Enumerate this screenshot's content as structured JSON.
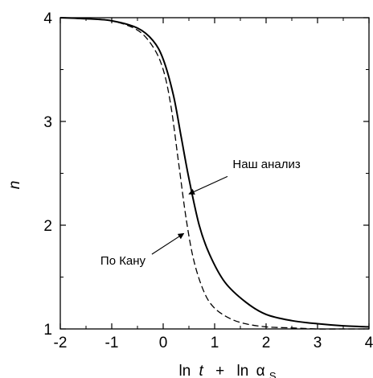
{
  "chart_data": {
    "type": "line",
    "xlabel_parts": {
      "ln1": "ln",
      "t": "t",
      "plus": "+",
      "ln2": "ln",
      "alpha": "α",
      "sub": "S"
    },
    "ylabel": "n",
    "xlim": [
      -2,
      4
    ],
    "ylim": [
      1,
      4
    ],
    "x_ticks": [
      {
        "value": -2,
        "label": "-2"
      },
      {
        "value": -1,
        "label": "-1"
      },
      {
        "value": 0,
        "label": "0"
      },
      {
        "value": 1,
        "label": "1"
      },
      {
        "value": 2,
        "label": "2"
      },
      {
        "value": 3,
        "label": "3"
      },
      {
        "value": 4,
        "label": "4"
      }
    ],
    "y_ticks": [
      {
        "value": 1,
        "label": "1"
      },
      {
        "value": 2,
        "label": "2"
      },
      {
        "value": 3,
        "label": "3"
      },
      {
        "value": 4,
        "label": "4"
      }
    ],
    "grid": false,
    "series": [
      {
        "style": "solid",
        "x": [
          -2.0,
          -1.5,
          -1.0,
          -0.5,
          -0.2,
          0.0,
          0.2,
          0.35,
          0.5,
          0.7,
          0.9,
          1.2,
          1.6,
          2.0,
          2.5,
          3.0,
          3.5,
          4.0
        ],
        "y": [
          4.0,
          3.99,
          3.97,
          3.9,
          3.78,
          3.6,
          3.25,
          2.85,
          2.45,
          2.0,
          1.72,
          1.45,
          1.26,
          1.14,
          1.08,
          1.05,
          1.03,
          1.02
        ]
      },
      {
        "style": "dashed",
        "x": [
          -2.0,
          -1.5,
          -1.0,
          -0.5,
          -0.2,
          0.0,
          0.15,
          0.3,
          0.45,
          0.6,
          0.8,
          1.0,
          1.3,
          1.6,
          2.0,
          2.5,
          3.0,
          3.5,
          4.0
        ],
        "y": [
          4.0,
          3.99,
          3.97,
          3.88,
          3.72,
          3.5,
          3.15,
          2.6,
          2.05,
          1.65,
          1.35,
          1.2,
          1.1,
          1.05,
          1.02,
          1.01,
          1.0,
          1.0,
          1.0
        ]
      }
    ],
    "annotations": [
      {
        "text": "Наш анализ",
        "text_at": [
          1.35,
          2.55
        ],
        "arrow_from": [
          1.25,
          2.47
        ],
        "arrow_to": [
          0.5,
          2.3
        ]
      },
      {
        "text": "По Кану",
        "text_at": [
          -1.22,
          1.62
        ],
        "arrow_from": [
          -0.22,
          1.72
        ],
        "arrow_to": [
          0.4,
          1.92
        ]
      }
    ]
  }
}
